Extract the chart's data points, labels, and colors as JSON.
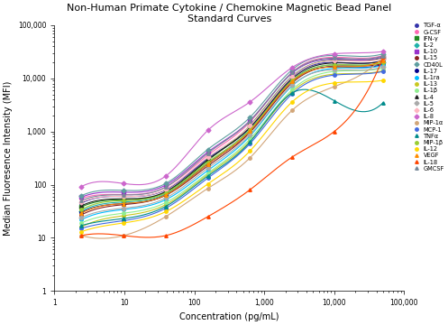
{
  "title": "Non-Human Primate Cytokine / Chemokine Magnetic Bead Panel\nStandard Curves",
  "xlabel": "Concentration (pg/mL)",
  "ylabel": "Median Fluoresence Intensity (MFI)",
  "bg_color": "#ffffff",
  "series": [
    {
      "name": "TGF-α",
      "color": "#3333aa",
      "marker": "o",
      "x": [
        2.44,
        9.77,
        39.06,
        156.25,
        625,
        2500,
        10000,
        50000
      ],
      "y": [
        45,
        60,
        80,
        310,
        1200,
        10500,
        20000,
        22000
      ]
    },
    {
      "name": "G-CSF",
      "color": "#ff69b4",
      "marker": "o",
      "x": [
        2.44,
        9.77,
        39.06,
        156.25,
        625,
        2500,
        10000,
        50000
      ],
      "y": [
        55,
        65,
        90,
        360,
        1500,
        13000,
        25000,
        27000
      ]
    },
    {
      "name": "IFN-γ",
      "color": "#228B22",
      "marker": "s",
      "x": [
        2.44,
        9.77,
        39.06,
        156.25,
        625,
        2500,
        10000,
        50000
      ],
      "y": [
        38,
        52,
        72,
        285,
        1300,
        11000,
        22000,
        24500
      ]
    },
    {
      "name": "IL-2",
      "color": "#20b2aa",
      "marker": "D",
      "x": [
        2.44,
        9.77,
        39.06,
        156.25,
        625,
        2500,
        10000,
        50000
      ],
      "y": [
        32,
        47,
        67,
        255,
        1100,
        9200,
        18000,
        20000
      ]
    },
    {
      "name": "IL-10",
      "color": "#9932cc",
      "marker": "s",
      "x": [
        2.44,
        9.77,
        39.06,
        156.25,
        625,
        2500,
        10000,
        50000
      ],
      "y": [
        58,
        72,
        98,
        410,
        1600,
        12500,
        23000,
        25500
      ]
    },
    {
      "name": "IL-15",
      "color": "#8B2020",
      "marker": "o",
      "x": [
        2.44,
        9.77,
        39.06,
        156.25,
        625,
        2500,
        10000,
        50000
      ],
      "y": [
        27,
        42,
        63,
        225,
        960,
        8200,
        17000,
        19000
      ]
    },
    {
      "name": "CD40L",
      "color": "#5f9ea0",
      "marker": "D",
      "x": [
        2.44,
        9.77,
        39.06,
        156.25,
        625,
        2500,
        10000,
        50000
      ],
      "y": [
        62,
        78,
        105,
        460,
        1850,
        14500,
        27000,
        29000
      ]
    },
    {
      "name": "IL-17",
      "color": "#00008B",
      "marker": "o",
      "x": [
        2.44,
        9.77,
        39.06,
        156.25,
        625,
        2500,
        10000,
        50000
      ],
      "y": [
        30,
        44,
        64,
        245,
        1010,
        8700,
        16500,
        18500
      ]
    },
    {
      "name": "IL-1ra",
      "color": "#00bfff",
      "marker": "o",
      "x": [
        2.44,
        9.77,
        39.06,
        156.25,
        625,
        2500,
        10000,
        50000
      ],
      "y": [
        22,
        34,
        52,
        185,
        820,
        7200,
        15500,
        17500
      ]
    },
    {
      "name": "IL-13",
      "color": "#c8c820",
      "marker": "o",
      "x": [
        2.44,
        9.77,
        39.06,
        156.25,
        625,
        2500,
        10000,
        50000
      ],
      "y": [
        16,
        26,
        42,
        155,
        660,
        5600,
        12000,
        14000
      ]
    },
    {
      "name": "IL-1β",
      "color": "#90ee90",
      "marker": "o",
      "x": [
        2.44,
        9.77,
        39.06,
        156.25,
        625,
        2500,
        10000,
        50000
      ],
      "y": [
        19,
        29,
        46,
        165,
        720,
        6100,
        13500,
        15500
      ]
    },
    {
      "name": "IL-4",
      "color": "#222222",
      "marker": "^",
      "x": [
        2.44,
        9.77,
        39.06,
        156.25,
        625,
        2500,
        10000,
        50000
      ],
      "y": [
        40,
        54,
        74,
        295,
        1180,
        9800,
        19500,
        21500
      ]
    },
    {
      "name": "IL-5",
      "color": "#aaaaaa",
      "marker": "D",
      "x": [
        2.44,
        9.77,
        39.06,
        156.25,
        625,
        2500,
        10000,
        50000
      ],
      "y": [
        24,
        36,
        56,
        205,
        870,
        7400,
        14500,
        16500
      ]
    },
    {
      "name": "IL-6",
      "color": "#ffb6c1",
      "marker": "D",
      "x": [
        2.44,
        9.77,
        39.06,
        156.25,
        625,
        2500,
        10000,
        50000
      ],
      "y": [
        47,
        60,
        82,
        330,
        1280,
        10800,
        21500,
        23500
      ]
    },
    {
      "name": "IL-8",
      "color": "#cc66cc",
      "marker": "D",
      "x": [
        2.44,
        9.77,
        39.06,
        156.25,
        625,
        2500,
        10000,
        50000
      ],
      "y": [
        92,
        105,
        145,
        1050,
        3600,
        16000,
        29000,
        32000
      ]
    },
    {
      "name": "MIP-1α",
      "color": "#d2a679",
      "marker": "o",
      "x": [
        2.44,
        9.77,
        39.06,
        156.25,
        625,
        2500,
        10000,
        50000
      ],
      "y": [
        11,
        11,
        25,
        85,
        320,
        2500,
        7000,
        25000
      ]
    },
    {
      "name": "MCP-1",
      "color": "#4169e1",
      "marker": "o",
      "x": [
        2.44,
        9.77,
        39.06,
        156.25,
        625,
        2500,
        10000,
        50000
      ],
      "y": [
        15,
        21,
        36,
        133,
        590,
        5100,
        11500,
        13500
      ]
    },
    {
      "name": "TNFα",
      "color": "#008b8b",
      "marker": "^",
      "x": [
        2.44,
        9.77,
        39.06,
        156.25,
        625,
        2500,
        10000,
        50000
      ],
      "y": [
        17,
        23,
        39,
        145,
        635,
        5300,
        3800,
        3500
      ]
    },
    {
      "name": "MIP-1β",
      "color": "#9acd32",
      "marker": "o",
      "x": [
        2.44,
        9.77,
        39.06,
        156.25,
        625,
        2500,
        10000,
        50000
      ],
      "y": [
        34,
        50,
        70,
        265,
        1070,
        9000,
        18000,
        20000
      ]
    },
    {
      "name": "IL-12",
      "color": "#ffd700",
      "marker": "o",
      "x": [
        2.44,
        9.77,
        39.06,
        156.25,
        625,
        2500,
        10000,
        50000
      ],
      "y": [
        13,
        19,
        31,
        103,
        430,
        3600,
        8200,
        9200
      ]
    },
    {
      "name": "VEGF",
      "color": "#ff8c00",
      "marker": "^",
      "x": [
        2.44,
        9.77,
        39.06,
        156.25,
        625,
        2500,
        10000,
        50000
      ],
      "y": [
        29,
        44,
        64,
        245,
        1020,
        8700,
        16500,
        22000
      ]
    },
    {
      "name": "IL-18",
      "color": "#ff4500",
      "marker": "^",
      "x": [
        2.44,
        9.77,
        39.06,
        156.25,
        625,
        2500,
        10000,
        50000
      ],
      "y": [
        11,
        11,
        11,
        25,
        80,
        330,
        1000,
        25000
      ]
    },
    {
      "name": "GMCSF",
      "color": "#778899",
      "marker": "^",
      "x": [
        2.44,
        9.77,
        39.06,
        156.25,
        625,
        2500,
        10000,
        50000
      ],
      "y": [
        50,
        64,
        90,
        390,
        1580,
        12800,
        24000,
        26500
      ]
    }
  ]
}
